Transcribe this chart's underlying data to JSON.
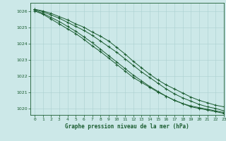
{
  "title": "Graphe pression niveau de la mer (hPa)",
  "background_color": "#cce8e8",
  "grid_color": "#aad0d0",
  "plot_bg": "#cce8e8",
  "line_color": "#1a5c30",
  "xlim": [
    -0.5,
    23
  ],
  "ylim": [
    1019.6,
    1026.5
  ],
  "yticks": [
    1020,
    1021,
    1022,
    1023,
    1024,
    1025,
    1026
  ],
  "xticks": [
    0,
    1,
    2,
    3,
    4,
    5,
    6,
    7,
    8,
    9,
    10,
    11,
    12,
    13,
    14,
    15,
    16,
    17,
    18,
    19,
    20,
    21,
    22,
    23
  ],
  "series": [
    [
      1026.1,
      1026.0,
      1025.85,
      1025.65,
      1025.45,
      1025.2,
      1025.0,
      1024.7,
      1024.45,
      1024.15,
      1023.75,
      1023.35,
      1022.9,
      1022.5,
      1022.1,
      1021.75,
      1021.45,
      1021.2,
      1020.95,
      1020.7,
      1020.5,
      1020.35,
      1020.2,
      1020.1
    ],
    [
      1026.1,
      1025.95,
      1025.75,
      1025.55,
      1025.3,
      1025.05,
      1024.8,
      1024.5,
      1024.15,
      1023.8,
      1023.45,
      1023.05,
      1022.65,
      1022.25,
      1021.9,
      1021.55,
      1021.2,
      1020.9,
      1020.65,
      1020.45,
      1020.25,
      1020.1,
      1020.0,
      1019.85
    ],
    [
      1026.05,
      1025.85,
      1025.6,
      1025.35,
      1025.05,
      1024.75,
      1024.4,
      1024.05,
      1023.65,
      1023.25,
      1022.85,
      1022.45,
      1022.05,
      1021.7,
      1021.35,
      1021.05,
      1020.75,
      1020.5,
      1020.3,
      1020.15,
      1020.05,
      1019.95,
      1019.85,
      1019.75
    ],
    [
      1026.0,
      1025.8,
      1025.5,
      1025.2,
      1024.9,
      1024.6,
      1024.25,
      1023.85,
      1023.5,
      1023.1,
      1022.7,
      1022.3,
      1021.9,
      1021.6,
      1021.3,
      1021.0,
      1020.75,
      1020.5,
      1020.3,
      1020.1,
      1020.0,
      1019.9,
      1019.8,
      1019.7
    ]
  ]
}
